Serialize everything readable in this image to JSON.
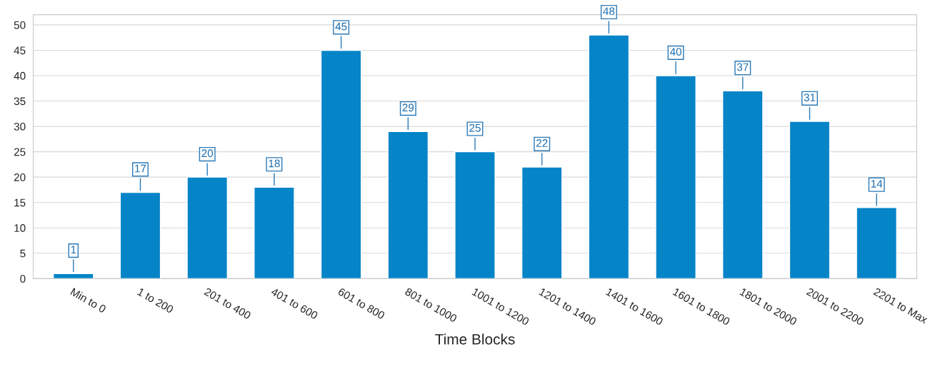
{
  "chart_data": {
    "type": "bar",
    "xlabel": "Time Blocks",
    "categories": [
      "Min to 0",
      "1 to 200",
      "201 to 400",
      "401 to 600",
      "601 to 800",
      "801 to 1000",
      "1001 to 1200",
      "1201 to 1400",
      "1401 to 1600",
      "1601 to 1800",
      "1801 to 2000",
      "2001 to 2200",
      "2201 to Max"
    ],
    "values": [
      1,
      17,
      20,
      18,
      45,
      29,
      25,
      22,
      48,
      40,
      37,
      31,
      14
    ],
    "color": "#0684c8",
    "ylim": [
      0,
      52
    ],
    "yticks": [
      0,
      5,
      10,
      15,
      20,
      25,
      30,
      35,
      40,
      45,
      50
    ],
    "grid": "y",
    "data_labels": true
  }
}
